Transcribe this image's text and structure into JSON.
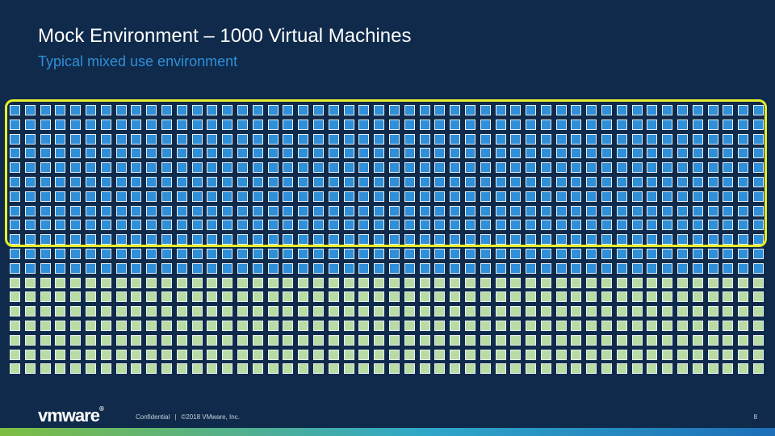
{
  "slide": {
    "title": "Mock Environment – 1000 Virtual Machines",
    "subtitle": "Typical mixed use environment"
  },
  "grid": {
    "columns": 50,
    "rows": 19,
    "groups": [
      {
        "rows": 12,
        "color": "#2f8fd8"
      },
      {
        "rows": 7,
        "color": "#b9dca5"
      }
    ],
    "highlight_rows": 10,
    "highlight_color": "#e5ee2a"
  },
  "footer": {
    "logo": "vmware",
    "logo_mark": "®",
    "confidential": "Confidential",
    "separator": "|",
    "copyright": "©2018 VMware, Inc.",
    "page_number": "8"
  },
  "colors": {
    "background": "#0f2a4a",
    "title": "#ffffff",
    "subtitle": "#2f8fd8",
    "bar_start": "#7dbd42",
    "bar_end": "#1d6fb8"
  }
}
